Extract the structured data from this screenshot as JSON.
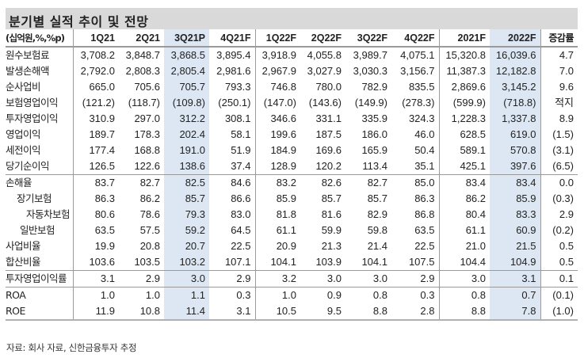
{
  "title": "분기별 실적 추이 및 전망",
  "header": {
    "unit": "(십억원,%,%p)",
    "columns": [
      "1Q21",
      "2Q21",
      "3Q21P",
      "4Q21F",
      "1Q22F",
      "2Q22F",
      "3Q22F",
      "4Q22F",
      "2021F",
      "2022F",
      "증감률"
    ]
  },
  "rows": [
    {
      "label": "원수보험료",
      "values": [
        "3,708.2",
        "3,848.7",
        "3,868.5",
        "3,895.4",
        "3,918.9",
        "4,055.8",
        "3,989.7",
        "4,075.1",
        "15,320.8",
        "16,039.6",
        "4.7"
      ]
    },
    {
      "label": "발생손해액",
      "values": [
        "2,792.0",
        "2,808.3",
        "2,805.4",
        "2,981.6",
        "2,967.9",
        "3,027.9",
        "3,030.3",
        "3,156.7",
        "11,387.3",
        "12,182.8",
        "7.0"
      ]
    },
    {
      "label": "순사업비",
      "values": [
        "665.0",
        "705.6",
        "705.7",
        "793.3",
        "746.8",
        "780.0",
        "782.9",
        "835.5",
        "2,869.6",
        "3,145.2",
        "9.6"
      ]
    },
    {
      "label": "보험영업이익",
      "values": [
        "(121.2)",
        "(118.7)",
        "(109.8)",
        "(250.1)",
        "(147.0)",
        "(143.6)",
        "(149.9)",
        "(278.3)",
        "(599.9)",
        "(718.8)",
        "적지"
      ]
    },
    {
      "label": "투자영업이익",
      "values": [
        "310.9",
        "297.0",
        "312.2",
        "308.1",
        "346.6",
        "331.1",
        "335.9",
        "324.3",
        "1,228.3",
        "1,337.8",
        "8.9"
      ]
    },
    {
      "label": "영업이익",
      "values": [
        "189.7",
        "178.3",
        "202.4",
        "58.1",
        "199.6",
        "187.5",
        "186.0",
        "46.0",
        "628.5",
        "619.0",
        "(1.5)"
      ]
    },
    {
      "label": "세전이익",
      "values": [
        "177.4",
        "168.8",
        "191.0",
        "51.9",
        "184.9",
        "169.6",
        "165.9",
        "50.4",
        "589.1",
        "570.8",
        "(3.1)"
      ]
    },
    {
      "label": "당기순이익",
      "values": [
        "126.5",
        "122.6",
        "138.6",
        "37.4",
        "128.9",
        "120.2",
        "113.4",
        "35.1",
        "425.1",
        "397.6",
        "(6.5)"
      ]
    },
    {
      "label": "손해율",
      "values": [
        "83.7",
        "82.7",
        "82.5",
        "84.6",
        "83.2",
        "82.6",
        "82.7",
        "85.0",
        "83.4",
        "83.4",
        "0.0"
      ]
    },
    {
      "label": "장기보험",
      "values": [
        "86.3",
        "86.2",
        "85.7",
        "86.6",
        "85.9",
        "85.7",
        "85.7",
        "86.3",
        "86.2",
        "85.9",
        "(0.3)"
      ]
    },
    {
      "label": "자동차보험",
      "values": [
        "80.6",
        "78.6",
        "79.3",
        "83.0",
        "81.8",
        "81.6",
        "82.9",
        "86.8",
        "80.4",
        "83.3",
        "2.9"
      ]
    },
    {
      "label": "일반보험",
      "values": [
        "63.5",
        "57.5",
        "59.2",
        "64.5",
        "61.1",
        "59.9",
        "59.8",
        "63.5",
        "61.1",
        "60.9",
        "(0.2)"
      ]
    },
    {
      "label": "사업비율",
      "values": [
        "19.9",
        "20.8",
        "20.7",
        "22.5",
        "20.9",
        "21.3",
        "21.4",
        "22.5",
        "21.0",
        "21.5",
        "0.5"
      ]
    },
    {
      "label": "합산비율",
      "values": [
        "103.6",
        "103.5",
        "103.2",
        "107.1",
        "104.1",
        "103.9",
        "104.1",
        "107.5",
        "104.4",
        "104.9",
        "0.5"
      ]
    },
    {
      "label": "투자영업이익률",
      "values": [
        "3.1",
        "2.9",
        "3.0",
        "2.9",
        "3.2",
        "3.0",
        "3.0",
        "2.9",
        "3.0",
        "3.1",
        "0.1"
      ]
    },
    {
      "label": "ROA",
      "values": [
        "1.0",
        "1.0",
        "1.1",
        "0.3",
        "1.0",
        "0.9",
        "0.8",
        "0.3",
        "0.8",
        "0.7",
        "(0.1)"
      ]
    },
    {
      "label": "ROE",
      "values": [
        "11.9",
        "10.8",
        "11.4",
        "3.1",
        "10.5",
        "9.5",
        "8.8",
        "2.8",
        "8.8",
        "7.8",
        "(1.0)"
      ]
    }
  ],
  "source": "자료: 회사 자료, 신한금융투자 추정",
  "colors": {
    "title_bg": "#d9d9d9",
    "highlight_bg": "#dde7f3",
    "rule": "#9a9a9a"
  }
}
